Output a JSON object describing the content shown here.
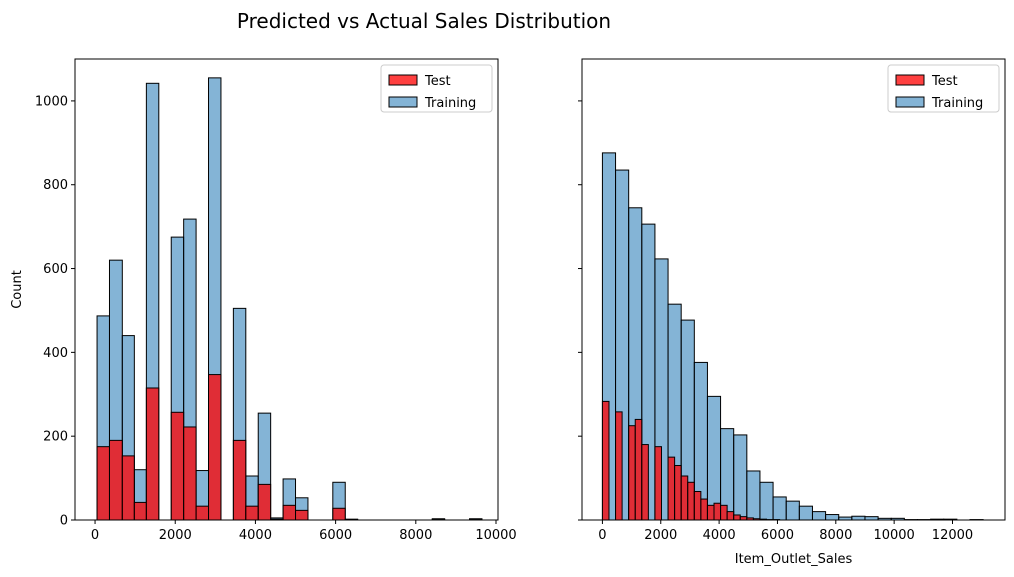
{
  "figure": {
    "title": "Predicted vs Actual Sales Distribution"
  },
  "chart_data": [
    {
      "type": "histogram",
      "title": "",
      "xlabel": "",
      "ylabel": "Count",
      "xlim": [
        -500,
        10050
      ],
      "ylim": [
        0,
        1100
      ],
      "xticks": [
        0,
        2000,
        4000,
        6000,
        8000,
        10000
      ],
      "yticks": [
        0,
        200,
        400,
        600,
        800,
        1000
      ],
      "legend": {
        "position": "top-right",
        "entries": [
          "Test",
          "Training"
        ]
      },
      "series": [
        {
          "name": "Training",
          "color": "#1f77b4",
          "fill_opacity": 0.55,
          "bins": [
            [
              50,
              360,
              487
            ],
            [
              360,
              680,
              620
            ],
            [
              680,
              980,
              440
            ],
            [
              980,
              1280,
              120
            ],
            [
              1280,
              1590,
              1042
            ],
            [
              1590,
              1900,
              0
            ],
            [
              1900,
              2210,
              675
            ],
            [
              2210,
              2520,
              718
            ],
            [
              2520,
              2830,
              118
            ],
            [
              2830,
              3140,
              1055
            ],
            [
              3140,
              3450,
              0
            ],
            [
              3450,
              3760,
              505
            ],
            [
              3760,
              4070,
              105
            ],
            [
              4070,
              4380,
              255
            ],
            [
              4380,
              4690,
              5
            ],
            [
              4690,
              5000,
              98
            ],
            [
              5000,
              5310,
              53
            ],
            [
              5310,
              5620,
              0
            ],
            [
              5620,
              5930,
              0
            ],
            [
              5930,
              6240,
              90
            ],
            [
              6240,
              6550,
              2
            ],
            [
              6550,
              6860,
              0
            ],
            [
              6860,
              7170,
              0
            ],
            [
              7170,
              7480,
              0
            ],
            [
              7480,
              7790,
              0
            ],
            [
              7790,
              8100,
              0
            ],
            [
              8100,
              8410,
              0
            ],
            [
              8410,
              8720,
              3
            ],
            [
              8720,
              9030,
              0
            ],
            [
              9030,
              9340,
              0
            ],
            [
              9340,
              9650,
              3
            ]
          ]
        },
        {
          "name": "Test",
          "color": "#ff0000",
          "fill_opacity": 0.75,
          "bins": [
            [
              50,
              360,
              175
            ],
            [
              360,
              680,
              190
            ],
            [
              680,
              980,
              153
            ],
            [
              980,
              1280,
              42
            ],
            [
              1280,
              1590,
              315
            ],
            [
              1590,
              1900,
              0
            ],
            [
              1900,
              2210,
              257
            ],
            [
              2210,
              2520,
              222
            ],
            [
              2520,
              2830,
              33
            ],
            [
              2830,
              3140,
              347
            ],
            [
              3140,
              3450,
              0
            ],
            [
              3450,
              3760,
              190
            ],
            [
              3760,
              4070,
              33
            ],
            [
              4070,
              4380,
              85
            ],
            [
              4380,
              4690,
              2
            ],
            [
              4690,
              5000,
              35
            ],
            [
              5000,
              5310,
              23
            ],
            [
              5310,
              5620,
              0
            ],
            [
              5620,
              5930,
              0
            ],
            [
              5930,
              6240,
              28
            ],
            [
              6240,
              6550,
              1
            ],
            [
              8410,
              8720,
              1
            ],
            [
              9340,
              9650,
              1
            ]
          ]
        }
      ]
    },
    {
      "type": "histogram",
      "title": "",
      "xlabel": "Item_Outlet_Sales",
      "ylabel": "",
      "xlim": [
        -700,
        13800
      ],
      "ylim": [
        0,
        1100
      ],
      "xticks": [
        0,
        2000,
        4000,
        6000,
        8000,
        10000,
        12000
      ],
      "yticks": [
        0,
        200,
        400,
        600,
        800,
        1000
      ],
      "legend": {
        "position": "top-right",
        "entries": [
          "Test",
          "Training"
        ]
      },
      "series": [
        {
          "name": "Training",
          "color": "#1f77b4",
          "fill_opacity": 0.55,
          "bins": [
            [
              0,
              450,
              876
            ],
            [
              450,
              900,
              835
            ],
            [
              900,
              1350,
              745
            ],
            [
              1350,
              1800,
              706
            ],
            [
              1800,
              2250,
              623
            ],
            [
              2250,
              2700,
              515
            ],
            [
              2700,
              3150,
              477
            ],
            [
              3150,
              3600,
              376
            ],
            [
              3600,
              4050,
              295
            ],
            [
              4050,
              4500,
              218
            ],
            [
              4500,
              4950,
              203
            ],
            [
              4950,
              5400,
              117
            ],
            [
              5400,
              5850,
              90
            ],
            [
              5850,
              6300,
              55
            ],
            [
              6300,
              6750,
              45
            ],
            [
              6750,
              7200,
              33
            ],
            [
              7200,
              7650,
              20
            ],
            [
              7650,
              8100,
              13
            ],
            [
              8100,
              8550,
              7
            ],
            [
              8550,
              9000,
              9
            ],
            [
              9000,
              9450,
              8
            ],
            [
              9450,
              9900,
              4
            ],
            [
              9900,
              10350,
              4
            ],
            [
              10350,
              10800,
              1
            ],
            [
              10800,
              11250,
              1
            ],
            [
              11250,
              11700,
              2
            ],
            [
              11700,
              12150,
              2
            ],
            [
              12150,
              12600,
              0
            ],
            [
              12600,
              13050,
              1
            ]
          ]
        },
        {
          "name": "Test",
          "color": "#ff0000",
          "fill_opacity": 0.75,
          "bins": [
            [
              0,
              225,
              283
            ],
            [
              225,
              450,
              0
            ],
            [
              450,
              675,
              258
            ],
            [
              675,
              900,
              0
            ],
            [
              900,
              1125,
              225
            ],
            [
              1125,
              1350,
              240
            ],
            [
              1350,
              1575,
              180
            ],
            [
              1575,
              1800,
              0
            ],
            [
              1800,
              2025,
              175
            ],
            [
              2025,
              2250,
              0
            ],
            [
              2250,
              2475,
              150
            ],
            [
              2475,
              2700,
              130
            ],
            [
              2700,
              2925,
              105
            ],
            [
              2925,
              3150,
              90
            ],
            [
              3150,
              3375,
              68
            ],
            [
              3375,
              3600,
              50
            ],
            [
              3600,
              3825,
              35
            ],
            [
              3825,
              4050,
              40
            ],
            [
              4050,
              4275,
              35
            ],
            [
              4275,
              4500,
              20
            ],
            [
              4500,
              4725,
              12
            ],
            [
              4725,
              4950,
              8
            ],
            [
              4950,
              5175,
              5
            ],
            [
              5175,
              5400,
              3
            ],
            [
              5400,
              5625,
              2
            ],
            [
              5625,
              5850,
              1
            ],
            [
              5850,
              6075,
              1
            ]
          ]
        }
      ]
    }
  ]
}
